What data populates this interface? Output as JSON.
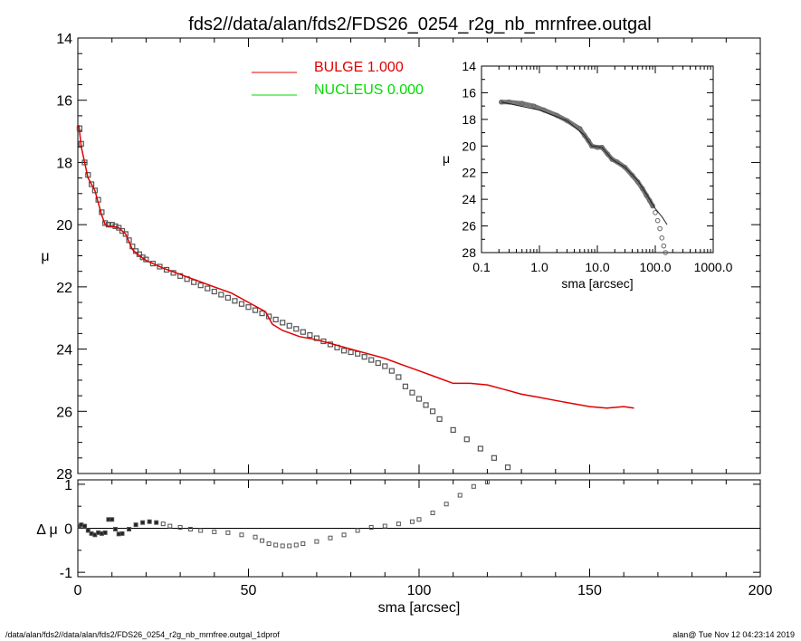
{
  "title": "fds2//data/alan/fds2/FDS26_0254_r2g_nb_mrnfree.outgal",
  "footer_left": "/data/alan/fds2//data/alan/fds2/FDS26_0254_r2g_nb_mrnfree.outgal_1dprof",
  "footer_right": "alan@  Tue Nov 12 04:23:14 2019",
  "colors": {
    "bulge": "#e00000",
    "nucleus": "#00dd00",
    "points": "#555555"
  },
  "legend": [
    {
      "name": "BULGE",
      "value": "1.000",
      "color": "#e00000"
    },
    {
      "name": "NUCLEUS",
      "value": "0.000",
      "color": "#00dd00"
    }
  ],
  "chart_data": [
    {
      "id": "main-profile",
      "type": "scatter",
      "xlabel": "sma [arcsec]",
      "ylabel": "μ",
      "xlim": [
        0,
        200
      ],
      "ylim": [
        28,
        14
      ],
      "y_inverted": true,
      "x_ticks": [
        "0",
        "50",
        "100",
        "150",
        "200"
      ],
      "y_ticks": [
        "14",
        "16",
        "18",
        "20",
        "22",
        "24",
        "26",
        "28"
      ],
      "series": [
        {
          "name": "BULGE",
          "kind": "line",
          "points": [
            [
              0.3,
              16.8
            ],
            [
              1,
              17.5
            ],
            [
              2,
              18.0
            ],
            [
              3,
              18.5
            ],
            [
              5,
              18.9
            ],
            [
              6,
              19.3
            ],
            [
              7,
              19.7
            ],
            [
              8,
              20.0
            ],
            [
              9,
              20.05
            ],
            [
              10,
              20.05
            ],
            [
              12,
              20.1
            ],
            [
              14,
              20.3
            ],
            [
              16,
              20.8
            ],
            [
              18,
              21.0
            ],
            [
              20,
              21.15
            ],
            [
              25,
              21.4
            ],
            [
              30,
              21.6
            ],
            [
              35,
              21.8
            ],
            [
              40,
              22.0
            ],
            [
              45,
              22.2
            ],
            [
              50,
              22.5
            ],
            [
              55,
              22.8
            ],
            [
              57,
              23.2
            ],
            [
              60,
              23.4
            ],
            [
              65,
              23.6
            ],
            [
              70,
              23.7
            ],
            [
              75,
              23.85
            ],
            [
              80,
              24.0
            ],
            [
              85,
              24.15
            ],
            [
              90,
              24.3
            ],
            [
              95,
              24.5
            ],
            [
              100,
              24.7
            ],
            [
              105,
              24.9
            ],
            [
              110,
              25.1
            ],
            [
              115,
              25.1
            ],
            [
              120,
              25.15
            ],
            [
              125,
              25.3
            ],
            [
              130,
              25.45
            ],
            [
              135,
              25.55
            ],
            [
              140,
              25.65
            ],
            [
              145,
              25.75
            ],
            [
              150,
              25.85
            ],
            [
              155,
              25.9
            ],
            [
              160,
              25.85
            ],
            [
              163,
              25.9
            ]
          ]
        },
        {
          "name": "data",
          "kind": "points",
          "points": [
            [
              0.5,
              16.9
            ],
            [
              1,
              17.4
            ],
            [
              2,
              18.0
            ],
            [
              3,
              18.4
            ],
            [
              4,
              18.7
            ],
            [
              5,
              18.9
            ],
            [
              6,
              19.2
            ],
            [
              7,
              19.6
            ],
            [
              8,
              19.95
            ],
            [
              9,
              20.0
            ],
            [
              10,
              20.0
            ],
            [
              11,
              20.05
            ],
            [
              12,
              20.1
            ],
            [
              13,
              20.2
            ],
            [
              14,
              20.3
            ],
            [
              15,
              20.5
            ],
            [
              16,
              20.7
            ],
            [
              17,
              20.85
            ],
            [
              18,
              20.95
            ],
            [
              19,
              21.05
            ],
            [
              20,
              21.12
            ],
            [
              22,
              21.25
            ],
            [
              24,
              21.35
            ],
            [
              26,
              21.45
            ],
            [
              28,
              21.55
            ],
            [
              30,
              21.65
            ],
            [
              32,
              21.75
            ],
            [
              34,
              21.85
            ],
            [
              36,
              21.95
            ],
            [
              38,
              22.05
            ],
            [
              40,
              22.15
            ],
            [
              42,
              22.25
            ],
            [
              44,
              22.35
            ],
            [
              46,
              22.45
            ],
            [
              48,
              22.55
            ],
            [
              50,
              22.65
            ],
            [
              52,
              22.75
            ],
            [
              54,
              22.85
            ],
            [
              56,
              22.95
            ],
            [
              58,
              23.05
            ],
            [
              60,
              23.15
            ],
            [
              62,
              23.25
            ],
            [
              64,
              23.35
            ],
            [
              66,
              23.45
            ],
            [
              68,
              23.55
            ],
            [
              70,
              23.65
            ],
            [
              72,
              23.75
            ],
            [
              74,
              23.85
            ],
            [
              76,
              23.95
            ],
            [
              78,
              24.05
            ],
            [
              80,
              24.1
            ],
            [
              82,
              24.15
            ],
            [
              84,
              24.25
            ],
            [
              86,
              24.35
            ],
            [
              88,
              24.45
            ],
            [
              90,
              24.55
            ],
            [
              92,
              24.7
            ],
            [
              94,
              24.9
            ],
            [
              96,
              25.2
            ],
            [
              98,
              25.4
            ],
            [
              100,
              25.6
            ],
            [
              102,
              25.8
            ],
            [
              104,
              26.0
            ],
            [
              106,
              26.25
            ],
            [
              110,
              26.6
            ],
            [
              114,
              26.9
            ],
            [
              118,
              27.2
            ],
            [
              122,
              27.5
            ],
            [
              126,
              27.8
            ]
          ]
        }
      ]
    },
    {
      "id": "inset-log",
      "type": "scatter",
      "xlabel": "sma [arcsec]",
      "ylabel": "μ",
      "x_scale": "log",
      "xlim": [
        0.1,
        1000
      ],
      "ylim": [
        28,
        14
      ],
      "y_inverted": true,
      "x_ticks": [
        "0.1",
        "1.0",
        "10.0",
        "100.0",
        "1000.0"
      ],
      "y_ticks": [
        "14",
        "16",
        "18",
        "20",
        "22",
        "24",
        "26",
        "28"
      ],
      "series": [
        {
          "name": "data",
          "kind": "points",
          "points": [
            [
              0.22,
              16.7
            ],
            [
              0.3,
              16.7
            ],
            [
              0.5,
              16.8
            ],
            [
              0.8,
              17.0
            ],
            [
              1.2,
              17.3
            ],
            [
              2,
              17.7
            ],
            [
              3,
              18.1
            ],
            [
              5,
              18.7
            ],
            [
              6,
              19.2
            ],
            [
              7,
              19.6
            ],
            [
              8,
              20.0
            ],
            [
              10,
              20.1
            ],
            [
              12,
              20.1
            ],
            [
              15,
              20.6
            ],
            [
              18,
              21.0
            ],
            [
              22,
              21.2
            ],
            [
              30,
              21.6
            ],
            [
              40,
              22.2
            ],
            [
              50,
              22.7
            ],
            [
              60,
              23.2
            ],
            [
              70,
              23.7
            ],
            [
              80,
              24.1
            ],
            [
              90,
              24.5
            ],
            [
              100,
              25.0
            ],
            [
              110,
              25.6
            ],
            [
              120,
              26.2
            ],
            [
              130,
              26.9
            ],
            [
              140,
              27.5
            ],
            [
              150,
              28.0
            ]
          ]
        },
        {
          "name": "BULGE",
          "kind": "line",
          "points": [
            [
              0.22,
              16.7
            ],
            [
              1,
              17.3
            ],
            [
              3,
              18.1
            ],
            [
              6,
              19.2
            ],
            [
              8,
              20.0
            ],
            [
              12,
              20.1
            ],
            [
              18,
              21.0
            ],
            [
              30,
              21.6
            ],
            [
              50,
              22.6
            ],
            [
              70,
              23.6
            ],
            [
              100,
              24.7
            ],
            [
              130,
              25.3
            ],
            [
              160,
              25.9
            ]
          ]
        }
      ]
    },
    {
      "id": "residual",
      "type": "scatter",
      "xlabel": "sma [arcsec]",
      "ylabel": "Δ μ",
      "xlim": [
        0,
        200
      ],
      "ylim": [
        -1.1,
        1.1
      ],
      "x_ticks": [
        "0",
        "50",
        "100",
        "150",
        "200"
      ],
      "y_ticks": [
        "1",
        "0",
        "-1"
      ],
      "series": [
        {
          "name": "residual",
          "kind": "points",
          "points": [
            [
              0.5,
              0.05
            ],
            [
              1,
              0.08
            ],
            [
              2,
              0.05
            ],
            [
              3,
              -0.05
            ],
            [
              4,
              -0.12
            ],
            [
              5,
              -0.15
            ],
            [
              6,
              -0.1
            ],
            [
              7,
              -0.12
            ],
            [
              8,
              -0.1
            ],
            [
              9,
              0.2
            ],
            [
              10,
              0.2
            ],
            [
              11,
              -0.02
            ],
            [
              12,
              -0.13
            ],
            [
              13,
              -0.12
            ],
            [
              15,
              -0.02
            ],
            [
              17,
              0.08
            ],
            [
              19,
              0.13
            ],
            [
              21,
              0.15
            ],
            [
              23,
              0.13
            ],
            [
              25,
              0.1
            ],
            [
              27,
              0.05
            ],
            [
              30,
              0.02
            ],
            [
              33,
              -0.02
            ],
            [
              36,
              -0.05
            ],
            [
              40,
              -0.08
            ],
            [
              44,
              -0.1
            ],
            [
              48,
              -0.15
            ],
            [
              52,
              -0.2
            ],
            [
              54,
              -0.28
            ],
            [
              56,
              -0.35
            ],
            [
              58,
              -0.38
            ],
            [
              60,
              -0.4
            ],
            [
              62,
              -0.4
            ],
            [
              64,
              -0.38
            ],
            [
              66,
              -0.35
            ],
            [
              70,
              -0.3
            ],
            [
              74,
              -0.22
            ],
            [
              78,
              -0.15
            ],
            [
              82,
              -0.05
            ],
            [
              86,
              0.02
            ],
            [
              90,
              0.05
            ],
            [
              94,
              0.1
            ],
            [
              98,
              0.15
            ],
            [
              100,
              0.2
            ],
            [
              104,
              0.35
            ],
            [
              108,
              0.55
            ],
            [
              112,
              0.75
            ],
            [
              116,
              0.95
            ],
            [
              120,
              1.05
            ]
          ]
        }
      ]
    }
  ]
}
